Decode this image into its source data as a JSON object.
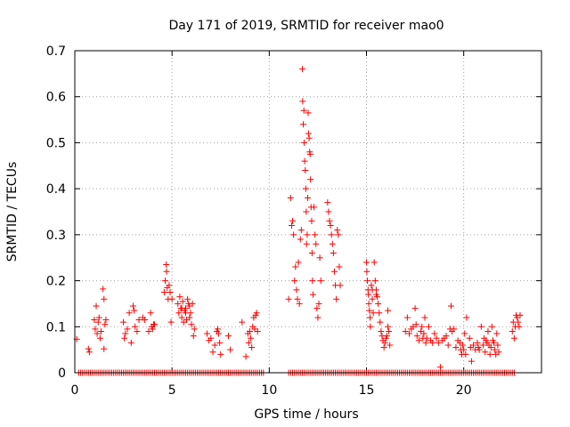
{
  "chart_data": {
    "type": "scatter",
    "title": "Day 171 of 2019, SRMTID for receiver mao0",
    "xlabel": "GPS time / hours",
    "ylabel": "SRMTID / TECUs",
    "xlim": [
      0,
      24
    ],
    "ylim": [
      0,
      0.7
    ],
    "xticks": [
      0,
      5,
      10,
      15,
      20
    ],
    "yticks": [
      0,
      0.1,
      0.2,
      0.3,
      0.4,
      0.5,
      0.6,
      0.7
    ],
    "xtick_labels": [
      "0",
      "5",
      "10",
      "15",
      "20"
    ],
    "ytick_labels": [
      "0",
      "0.1",
      "0.2",
      "0.3",
      "0.4",
      "0.5",
      "0.6",
      "0.7"
    ],
    "grid": true,
    "marker": "+",
    "color": "#ff0000",
    "series": [
      {
        "name": "SRMTID",
        "points": [
          [
            0.1,
            0.073
          ],
          [
            0.7,
            0.052
          ],
          [
            0.75,
            0.045
          ],
          [
            1.0,
            0.115
          ],
          [
            1.05,
            0.095
          ],
          [
            1.1,
            0.145
          ],
          [
            1.15,
            0.085
          ],
          [
            1.2,
            0.11
          ],
          [
            1.25,
            0.12
          ],
          [
            1.3,
            0.075
          ],
          [
            1.35,
            0.09
          ],
          [
            1.45,
            0.182
          ],
          [
            1.5,
            0.16
          ],
          [
            1.55,
            0.105
          ],
          [
            1.6,
            0.115
          ],
          [
            1.5,
            0.052
          ],
          [
            2.5,
            0.11
          ],
          [
            2.55,
            0.075
          ],
          [
            2.6,
            0.085
          ],
          [
            2.7,
            0.095
          ],
          [
            2.8,
            0.13
          ],
          [
            2.9,
            0.065
          ],
          [
            3.0,
            0.145
          ],
          [
            3.05,
            0.135
          ],
          [
            3.1,
            0.1
          ],
          [
            3.2,
            0.09
          ],
          [
            3.3,
            0.115
          ],
          [
            3.5,
            0.12
          ],
          [
            3.6,
            0.115
          ],
          [
            3.8,
            0.09
          ],
          [
            3.9,
            0.13
          ],
          [
            3.95,
            0.1
          ],
          [
            4.0,
            0.095
          ],
          [
            4.05,
            0.105
          ],
          [
            4.1,
            0.105
          ],
          [
            4.6,
            0.175
          ],
          [
            4.65,
            0.2
          ],
          [
            4.7,
            0.235
          ],
          [
            4.72,
            0.22
          ],
          [
            4.75,
            0.185
          ],
          [
            4.8,
            0.16
          ],
          [
            4.85,
            0.19
          ],
          [
            4.9,
            0.175
          ],
          [
            4.95,
            0.11
          ],
          [
            5.0,
            0.16
          ],
          [
            5.3,
            0.15
          ],
          [
            5.35,
            0.13
          ],
          [
            5.4,
            0.165
          ],
          [
            5.45,
            0.14
          ],
          [
            5.5,
            0.12
          ],
          [
            5.55,
            0.155
          ],
          [
            5.6,
            0.11
          ],
          [
            5.65,
            0.135
          ],
          [
            5.7,
            0.14
          ],
          [
            5.75,
            0.115
          ],
          [
            5.8,
            0.16
          ],
          [
            5.85,
            0.15
          ],
          [
            5.9,
            0.145
          ],
          [
            5.95,
            0.13
          ],
          [
            6.0,
            0.105
          ],
          [
            6.05,
            0.15
          ],
          [
            6.1,
            0.08
          ],
          [
            6.15,
            0.095
          ],
          [
            5.5,
            0.14
          ],
          [
            5.7,
            0.13
          ],
          [
            5.9,
            0.12
          ],
          [
            6.8,
            0.085
          ],
          [
            6.9,
            0.07
          ],
          [
            7.0,
            0.075
          ],
          [
            7.1,
            0.045
          ],
          [
            7.2,
            0.06
          ],
          [
            7.3,
            0.09
          ],
          [
            7.35,
            0.095
          ],
          [
            7.4,
            0.085
          ],
          [
            7.45,
            0.065
          ],
          [
            7.5,
            0.04
          ],
          [
            7.9,
            0.08
          ],
          [
            8.0,
            0.05
          ],
          [
            8.6,
            0.11
          ],
          [
            8.8,
            0.035
          ],
          [
            8.9,
            0.085
          ],
          [
            8.95,
            0.065
          ],
          [
            9.0,
            0.09
          ],
          [
            9.05,
            0.075
          ],
          [
            9.1,
            0.055
          ],
          [
            9.15,
            0.1
          ],
          [
            9.2,
            0.12
          ],
          [
            9.25,
            0.095
          ],
          [
            9.3,
            0.125
          ],
          [
            9.35,
            0.13
          ],
          [
            9.4,
            0.09
          ],
          [
            11.0,
            0.16
          ],
          [
            11.1,
            0.38
          ],
          [
            11.15,
            0.32
          ],
          [
            11.2,
            0.33
          ],
          [
            11.25,
            0.3
          ],
          [
            11.3,
            0.2
          ],
          [
            11.35,
            0.23
          ],
          [
            11.4,
            0.18
          ],
          [
            11.45,
            0.16
          ],
          [
            11.5,
            0.24
          ],
          [
            11.55,
            0.15
          ],
          [
            11.6,
            0.29
          ],
          [
            11.65,
            0.31
          ],
          [
            11.7,
            0.66
          ],
          [
            11.72,
            0.59
          ],
          [
            11.75,
            0.54
          ],
          [
            11.78,
            0.57
          ],
          [
            11.8,
            0.5
          ],
          [
            11.82,
            0.46
          ],
          [
            11.85,
            0.44
          ],
          [
            11.88,
            0.4
          ],
          [
            11.9,
            0.35
          ],
          [
            11.92,
            0.28
          ],
          [
            11.95,
            0.3
          ],
          [
            11.98,
            0.38
          ],
          [
            12.0,
            0.565
          ],
          [
            12.02,
            0.52
          ],
          [
            12.05,
            0.51
          ],
          [
            12.08,
            0.48
          ],
          [
            12.1,
            0.475
          ],
          [
            12.12,
            0.42
          ],
          [
            12.15,
            0.36
          ],
          [
            12.18,
            0.33
          ],
          [
            12.2,
            0.26
          ],
          [
            12.22,
            0.2
          ],
          [
            12.25,
            0.17
          ],
          [
            12.3,
            0.36
          ],
          [
            12.35,
            0.3
          ],
          [
            12.4,
            0.28
          ],
          [
            12.45,
            0.14
          ],
          [
            12.5,
            0.12
          ],
          [
            12.55,
            0.15
          ],
          [
            12.6,
            0.25
          ],
          [
            12.65,
            0.2
          ],
          [
            13.0,
            0.37
          ],
          [
            13.05,
            0.35
          ],
          [
            13.1,
            0.33
          ],
          [
            13.15,
            0.32
          ],
          [
            13.2,
            0.3
          ],
          [
            13.25,
            0.28
          ],
          [
            13.3,
            0.26
          ],
          [
            13.35,
            0.22
          ],
          [
            13.4,
            0.19
          ],
          [
            13.45,
            0.16
          ],
          [
            13.5,
            0.31
          ],
          [
            13.55,
            0.3
          ],
          [
            13.6,
            0.23
          ],
          [
            13.65,
            0.19
          ],
          [
            15.0,
            0.24
          ],
          [
            15.02,
            0.22
          ],
          [
            15.05,
            0.2
          ],
          [
            15.08,
            0.18
          ],
          [
            15.1,
            0.17
          ],
          [
            15.12,
            0.15
          ],
          [
            15.15,
            0.135
          ],
          [
            15.18,
            0.12
          ],
          [
            15.2,
            0.1
          ],
          [
            15.25,
            0.19
          ],
          [
            15.3,
            0.16
          ],
          [
            15.35,
            0.13
          ],
          [
            15.4,
            0.24
          ],
          [
            15.45,
            0.2
          ],
          [
            15.5,
            0.18
          ],
          [
            15.55,
            0.165
          ],
          [
            15.6,
            0.15
          ],
          [
            15.65,
            0.13
          ],
          [
            15.7,
            0.11
          ],
          [
            15.75,
            0.09
          ],
          [
            15.8,
            0.08
          ],
          [
            15.85,
            0.07
          ],
          [
            15.9,
            0.055
          ],
          [
            15.95,
            0.065
          ],
          [
            16.0,
            0.075
          ],
          [
            16.05,
            0.08
          ],
          [
            16.1,
            0.1
          ],
          [
            16.15,
            0.09
          ],
          [
            16.2,
            0.06
          ],
          [
            15.5,
            0.17
          ],
          [
            15.3,
            0.18
          ],
          [
            16.1,
            0.135
          ],
          [
            17.0,
            0.09
          ],
          [
            17.1,
            0.12
          ],
          [
            17.2,
            0.085
          ],
          [
            17.3,
            0.095
          ],
          [
            17.4,
            0.1
          ],
          [
            17.5,
            0.14
          ],
          [
            17.55,
            0.105
          ],
          [
            17.6,
            0.08
          ],
          [
            17.7,
            0.07
          ],
          [
            17.8,
            0.09
          ],
          [
            17.85,
            0.1
          ],
          [
            17.9,
            0.075
          ],
          [
            17.95,
            0.085
          ],
          [
            18.0,
            0.12
          ],
          [
            18.05,
            0.065
          ],
          [
            18.1,
            0.075
          ],
          [
            18.2,
            0.1
          ],
          [
            18.3,
            0.07
          ],
          [
            18.4,
            0.065
          ],
          [
            18.5,
            0.085
          ],
          [
            18.6,
            0.075
          ],
          [
            18.7,
            0.065
          ],
          [
            18.8,
            0.012
          ],
          [
            18.9,
            0.07
          ],
          [
            19.0,
            0.075
          ],
          [
            19.1,
            0.08
          ],
          [
            19.2,
            0.06
          ],
          [
            19.3,
            0.095
          ],
          [
            19.35,
            0.145
          ],
          [
            19.4,
            0.09
          ],
          [
            19.5,
            0.095
          ],
          [
            19.6,
            0.055
          ],
          [
            19.7,
            0.07
          ],
          [
            19.8,
            0.065
          ],
          [
            19.85,
            0.05
          ],
          [
            19.9,
            0.04
          ],
          [
            19.95,
            0.06
          ],
          [
            20.0,
            0.05
          ],
          [
            20.05,
            0.085
          ],
          [
            20.1,
            0.04
          ],
          [
            20.15,
            0.12
          ],
          [
            20.3,
            0.075
          ],
          [
            20.35,
            0.055
          ],
          [
            20.4,
            0.025
          ],
          [
            20.5,
            0.06
          ],
          [
            20.6,
            0.05
          ],
          [
            20.7,
            0.065
          ],
          [
            20.75,
            0.055
          ],
          [
            20.8,
            0.05
          ],
          [
            20.9,
            0.1
          ],
          [
            21.0,
            0.06
          ],
          [
            21.05,
            0.075
          ],
          [
            21.1,
            0.045
          ],
          [
            21.15,
            0.07
          ],
          [
            21.2,
            0.065
          ],
          [
            21.25,
            0.09
          ],
          [
            21.3,
            0.06
          ],
          [
            21.35,
            0.04
          ],
          [
            21.4,
            0.055
          ],
          [
            21.45,
            0.1
          ],
          [
            21.5,
            0.07
          ],
          [
            21.55,
            0.065
          ],
          [
            21.6,
            0.05
          ],
          [
            21.65,
            0.04
          ],
          [
            21.7,
            0.085
          ],
          [
            21.75,
            0.06
          ],
          [
            21.8,
            0.045
          ],
          [
            22.5,
            0.09
          ],
          [
            22.55,
            0.11
          ],
          [
            22.6,
            0.075
          ],
          [
            22.65,
            0.1
          ],
          [
            22.7,
            0.125
          ],
          [
            22.75,
            0.12
          ],
          [
            22.8,
            0.11
          ],
          [
            22.85,
            0.1
          ],
          [
            22.9,
            0.125
          ]
        ],
        "zero_band_hours": [
          [
            0.2,
            2.4
          ],
          [
            2.5,
            4.4
          ],
          [
            4.5,
            9.7
          ],
          [
            11.0,
            15.0
          ],
          [
            15.0,
            22.6
          ]
        ]
      }
    ]
  }
}
